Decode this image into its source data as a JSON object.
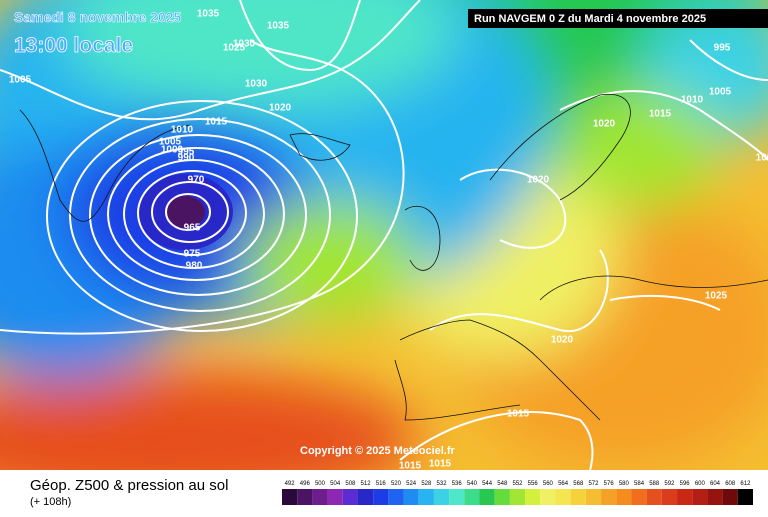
{
  "header": {
    "date": "Samedi 8 novembre 2025",
    "time": "13:00 locale",
    "run": "Run NAVGEM 0 Z du Mardi 4 novembre 2025"
  },
  "copyright": "Copyright © 2025 Meteociel.fr",
  "footer": {
    "title": "Géop. Z500 & pression au sol",
    "lead": "(+ 108h)"
  },
  "isobar_labels": [
    "1035",
    "1035",
    "1030",
    "1025",
    "1030",
    "1020",
    "1015",
    "1010",
    "1005",
    "1000",
    "995",
    "990",
    "970",
    "965",
    "975",
    "980",
    "1005",
    "1020",
    "1015",
    "995",
    "1010",
    "1005",
    "1020",
    "1020",
    "1025",
    "1020",
    "1015",
    "1015",
    "1015",
    "100"
  ],
  "colorbar": {
    "labels": [
      492,
      496,
      500,
      504,
      508,
      512,
      516,
      520,
      524,
      528,
      532,
      536,
      540,
      544,
      548,
      552,
      556,
      560,
      564,
      568,
      572,
      576,
      580,
      584,
      588,
      592,
      596,
      600,
      604,
      608,
      612
    ],
    "colors": [
      "#2b0a3b",
      "#4b1463",
      "#6e1e8c",
      "#8c28b4",
      "#5a2dd2",
      "#2828c8",
      "#1e3ce6",
      "#1e64f0",
      "#1e8cf0",
      "#28b4f0",
      "#3cd2e6",
      "#50e6c8",
      "#3cdc8c",
      "#28c850",
      "#64dc3c",
      "#a0e632",
      "#d2f03c",
      "#f0f064",
      "#f5e650",
      "#f5d23c",
      "#f5be32",
      "#f5a028",
      "#f58c1e",
      "#f06e1e",
      "#e6501e",
      "#dc3c1e",
      "#c82814",
      "#b41e14",
      "#961410",
      "#6e0a0a",
      "#000000"
    ]
  }
}
